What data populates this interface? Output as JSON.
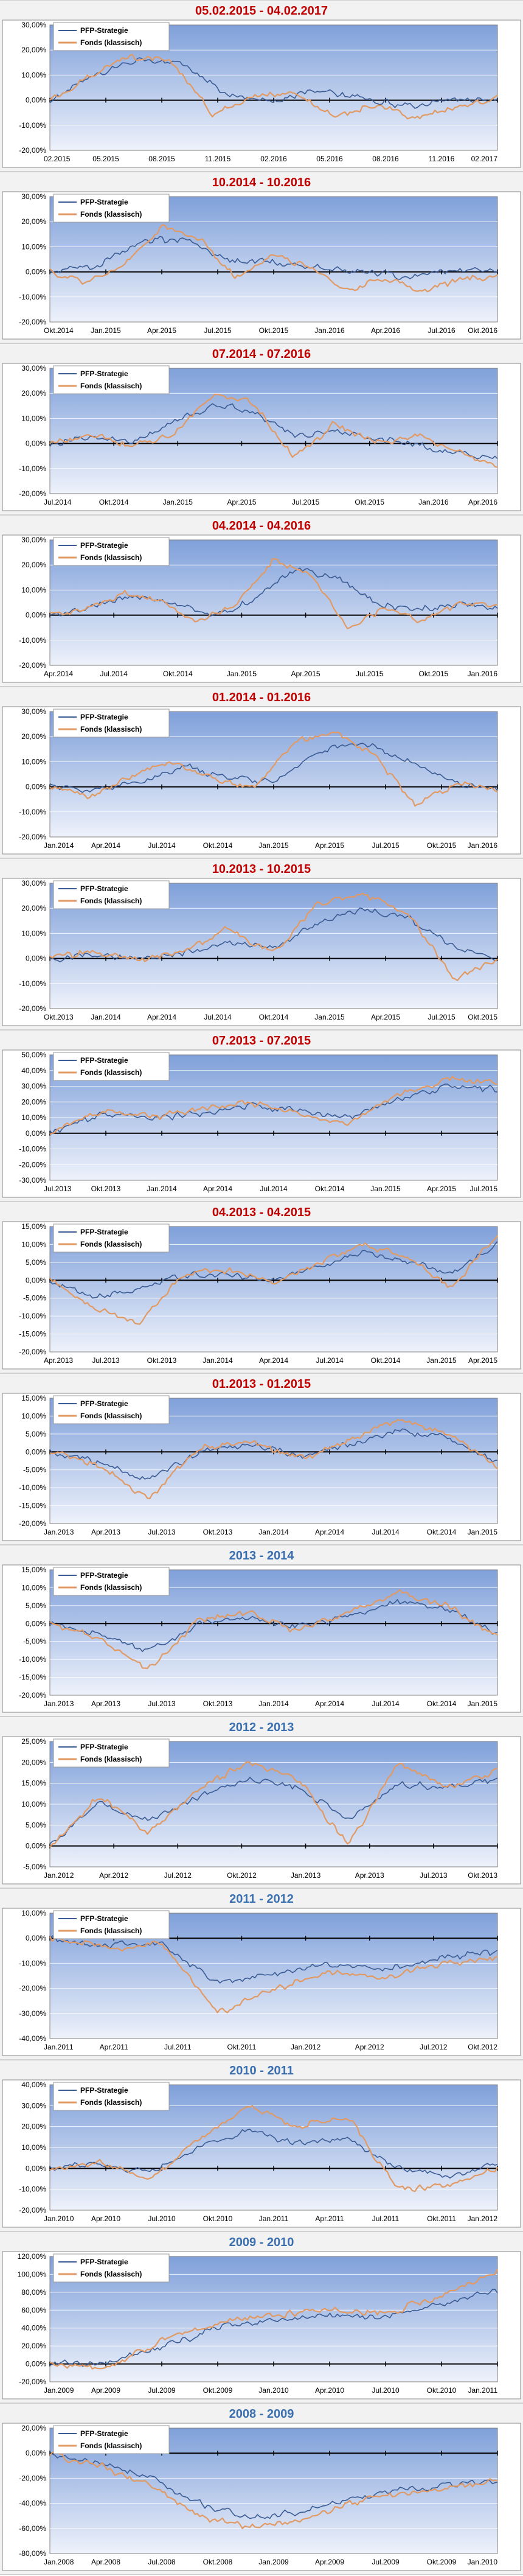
{
  "legend_labels": [
    "PFP-Strategie",
    "Fonds (klassisch)"
  ],
  "colors": {
    "plot_top": "#7fa0da",
    "plot_bottom": "#eef2fb",
    "grid": "#ffffff",
    "red_title": "#c00000",
    "blue_title": "#3a6fb0",
    "series_pfp": "#3a5b93",
    "series_fonds": "#e19a63",
    "zero_line": "#000000"
  },
  "chart_data": [
    {
      "type": "line",
      "title": "05.02.2015 - 04.02.2017",
      "title_color": "red",
      "xlabels": [
        "02.2015",
        "05.2015",
        "08.2015",
        "11.2015",
        "02.2016",
        "05.2016",
        "08.2016",
        "11.2016",
        "02.2017"
      ],
      "ytick_labels": [
        "-20,00%",
        "-10,00%",
        "0,00%",
        "10,00%",
        "20,00%",
        "30,00%"
      ],
      "ylim": [
        -20,
        30
      ],
      "series": [
        {
          "name": "PFP-Strategie",
          "values": [
            0,
            10,
            17,
            14,
            2,
            0,
            4,
            1,
            -3,
            0,
            0
          ]
        },
        {
          "name": "Fonds (klassisch)",
          "values": [
            0,
            10,
            18,
            15,
            -6,
            2,
            3,
            -6,
            -2,
            -7,
            -3,
            1
          ]
        }
      ]
    },
    {
      "type": "line",
      "title": "10.2014 - 10.2016",
      "title_color": "red",
      "xlabels": [
        "Okt.2014",
        "Jan.2015",
        "Apr.2015",
        "Jul.2015",
        "Okt.2015",
        "Jan.2016",
        "Apr.2016",
        "Jul.2016",
        "Okt.2016"
      ],
      "ytick_labels": [
        "-20,00%",
        "-10,00%",
        "0,00%",
        "10,00%",
        "20,00%",
        "30,00%"
      ],
      "ylim": [
        -20,
        30
      ],
      "series": [
        {
          "name": "PFP-Strategie",
          "values": [
            0,
            2,
            12,
            13,
            4,
            4,
            2,
            0,
            -2,
            1,
            0
          ]
        },
        {
          "name": "Fonds (klassisch)",
          "values": [
            0,
            -4,
            3,
            18,
            14,
            -3,
            7,
            2,
            -8,
            -2,
            -8,
            -3,
            -2
          ]
        }
      ]
    },
    {
      "type": "line",
      "title": "07.2014 - 07.2016",
      "title_color": "red",
      "xlabels": [
        "Jul.2014",
        "Okt.2014",
        "Jan.2015",
        "Apr.2015",
        "Jul.2015",
        "Okt.2015",
        "Jan.2016",
        "Apr.2016"
      ],
      "ytick_labels": [
        "-20,00%",
        "-10,00%",
        "0,00%",
        "10,00%",
        "20,00%",
        "30,00%"
      ],
      "ylim": [
        -20,
        30
      ],
      "series": [
        {
          "name": "PFP-Strategie",
          "values": [
            0,
            3,
            0,
            8,
            15,
            13,
            3,
            5,
            2,
            0,
            -4,
            -6
          ]
        },
        {
          "name": "Fonds (klassisch)",
          "values": [
            0,
            4,
            -1,
            3,
            20,
            16,
            -6,
            8,
            0,
            3,
            -3,
            -10
          ]
        }
      ]
    },
    {
      "type": "line",
      "title": "04.2014 - 04.2016",
      "title_color": "red",
      "xlabels": [
        "Apr.2014",
        "Jul.2014",
        "Okt.2014",
        "Jan.2015",
        "Apr.2015",
        "Jul.2015",
        "Okt.2015",
        "Jan.2016"
      ],
      "ytick_labels": [
        "-20,00%",
        "-10,00%",
        "0,00%",
        "10,00%",
        "20,00%",
        "30,00%"
      ],
      "ylim": [
        -20,
        30
      ],
      "series": [
        {
          "name": "PFP-Strategie",
          "values": [
            0,
            3,
            8,
            5,
            0,
            6,
            18,
            16,
            5,
            2,
            4,
            3
          ]
        },
        {
          "name": "Fonds (klassisch)",
          "values": [
            0,
            2,
            9,
            6,
            -3,
            5,
            22,
            17,
            -6,
            3,
            -2,
            5,
            4
          ]
        }
      ]
    },
    {
      "type": "line",
      "title": "01.2014 - 01.2016",
      "title_color": "red",
      "xlabels": [
        "Jan.2014",
        "Apr.2014",
        "Jul.2014",
        "Okt.2014",
        "Jan.2015",
        "Apr.2015",
        "Jul.2015",
        "Okt.2015",
        "Jan.2016"
      ],
      "ytick_labels": [
        "-20,00%",
        "-10,00%",
        "0,00%",
        "10,00%",
        "20,00%",
        "30,00%"
      ],
      "ylim": [
        -20,
        30
      ],
      "series": [
        {
          "name": "PFP-Strategie",
          "values": [
            0,
            -1,
            2,
            8,
            4,
            2,
            14,
            18,
            10,
            2,
            -1
          ]
        },
        {
          "name": "Fonds (klassisch)",
          "values": [
            0,
            -4,
            4,
            10,
            3,
            -1,
            18,
            22,
            12,
            -8,
            2,
            -2
          ]
        }
      ]
    },
    {
      "type": "line",
      "title": "10.2013 - 10.2015",
      "title_color": "red",
      "xlabels": [
        "Okt.2013",
        "Jan.2014",
        "Apr.2014",
        "Jul.2014",
        "Okt.2014",
        "Jan.2015",
        "Apr.2015",
        "Jul.2015",
        "Okt.2015"
      ],
      "ytick_labels": [
        "-20,00%",
        "-10,00%",
        "0,00%",
        "10,00%",
        "20,00%",
        "30,00%"
      ],
      "ylim": [
        -20,
        30
      ],
      "series": [
        {
          "name": "PFP-Strategie",
          "values": [
            0,
            1,
            0,
            2,
            6,
            4,
            14,
            20,
            16,
            5,
            0
          ]
        },
        {
          "name": "Fonds (klassisch)",
          "values": [
            0,
            3,
            -1,
            3,
            12,
            2,
            22,
            26,
            18,
            -8,
            0
          ]
        }
      ]
    },
    {
      "type": "line",
      "title": "07.2013 - 07.2015",
      "title_color": "red",
      "xlabels": [
        "Jul.2013",
        "Okt.2013",
        "Jan.2014",
        "Apr.2014",
        "Jul.2014",
        "Okt.2014",
        "Jan.2015",
        "Apr.2015",
        "Jul.2015"
      ],
      "ytick_labels": [
        "-30,00%",
        "-20,00%",
        "-10,00%",
        "0,00%",
        "10,00%",
        "20,00%",
        "30,00%",
        "40,00%",
        "50,00%"
      ],
      "ylim": [
        -30,
        50
      ],
      "series": [
        {
          "name": "PFP-Strategie",
          "values": [
            0,
            12,
            10,
            12,
            18,
            14,
            10,
            22,
            30,
            28
          ]
        },
        {
          "name": "Fonds (klassisch)",
          "values": [
            0,
            14,
            10,
            15,
            20,
            12,
            6,
            25,
            35,
            32
          ]
        }
      ]
    },
    {
      "type": "line",
      "title": "04.2013 - 04.2015",
      "title_color": "red",
      "xlabels": [
        "Apr.2013",
        "Jul.2013",
        "Okt.2013",
        "Jan.2014",
        "Apr.2014",
        "Jul.2014",
        "Okt.2014",
        "Jan.2015",
        "Apr.2015"
      ],
      "ytick_labels": [
        "-20,00%",
        "-15,00%",
        "-10,00%",
        "-5,00%",
        "0,00%",
        "5,00%",
        "10,00%",
        "15,00%"
      ],
      "ylim": [
        -20,
        15
      ],
      "series": [
        {
          "name": "PFP-Strategie",
          "values": [
            0,
            -5,
            -2,
            1,
            2,
            0,
            4,
            8,
            5,
            2,
            10
          ]
        },
        {
          "name": "Fonds (klassisch)",
          "values": [
            0,
            -8,
            -12,
            2,
            3,
            -1,
            5,
            10,
            6,
            -2,
            13
          ]
        }
      ]
    },
    {
      "type": "line",
      "title": "01.2013 - 01.2015",
      "title_color": "red",
      "xlabels": [
        "Jan.2013",
        "Apr.2013",
        "Jul.2013",
        "Okt.2013",
        "Jan.2014",
        "Apr.2014",
        "Jul.2014",
        "Okt.2014",
        "Jan.2015"
      ],
      "ytick_labels": [
        "-20,00%",
        "-15,00%",
        "-10,00%",
        "-5,00%",
        "0,00%",
        "5,00%",
        "10,00%",
        "15,00%"
      ],
      "ylim": [
        -20,
        15
      ],
      "series": [
        {
          "name": "PFP-Strategie",
          "values": [
            0,
            -3,
            -8,
            0,
            2,
            -1,
            2,
            6,
            4,
            -3
          ]
        },
        {
          "name": "Fonds (klassisch)",
          "values": [
            0,
            -4,
            -13,
            1,
            3,
            -2,
            3,
            9,
            5,
            -4
          ]
        }
      ]
    },
    {
      "type": "line",
      "title": "2013 - 2014",
      "title_color": "blue",
      "xlabels": [
        "Jan.2013",
        "Apr.2013",
        "Jul.2013",
        "Okt.2013",
        "Jan.2014",
        "Apr.2014",
        "Jul.2014",
        "Okt.2014",
        "Jan.2015"
      ],
      "ytick_labels": [
        "-20,00%",
        "-15,00%",
        "-10,00%",
        "-5,00%",
        "0,00%",
        "5,00%",
        "10,00%",
        "15,00%"
      ],
      "ylim": [
        -20,
        15
      ],
      "series": [
        {
          "name": "PFP-Strategie",
          "values": [
            0,
            -3,
            -8,
            0,
            2,
            -1,
            2,
            6,
            4,
            -3
          ]
        },
        {
          "name": "Fonds (klassisch)",
          "values": [
            0,
            -4,
            -13,
            1,
            3,
            -2,
            3,
            9,
            5,
            -4
          ]
        }
      ]
    },
    {
      "type": "line",
      "title": "2012 - 2013",
      "title_color": "blue",
      "xlabels": [
        "Jan.2012",
        "Apr.2012",
        "Jul.2012",
        "Okt.2012",
        "Jan.2013",
        "Apr.2013",
        "Jul.2013",
        "Okt.2013"
      ],
      "ytick_labels": [
        "-5,00%",
        "0,00%",
        "5,00%",
        "10,00%",
        "15,00%",
        "20,00%",
        "25,00%"
      ],
      "ylim": [
        -5,
        25
      ],
      "series": [
        {
          "name": "PFP-Strategie",
          "values": [
            0,
            10,
            6,
            12,
            16,
            14,
            6,
            15,
            14,
            16
          ]
        },
        {
          "name": "Fonds (klassisch)",
          "values": [
            0,
            12,
            3,
            14,
            20,
            16,
            0,
            20,
            14,
            18
          ]
        }
      ]
    },
    {
      "type": "line",
      "title": "2011 - 2012",
      "title_color": "blue",
      "xlabels": [
        "Jan.2011",
        "Apr.2011",
        "Jul.2011",
        "Okt.2011",
        "Jan.2012",
        "Apr.2012",
        "Jul.2012",
        "Okt.2012"
      ],
      "ytick_labels": [
        "-40,00%",
        "-30,00%",
        "-20,00%",
        "-10,00%",
        "0,00%",
        "10,00%"
      ],
      "ylim": [
        -40,
        10
      ],
      "series": [
        {
          "name": "PFP-Strategie",
          "values": [
            0,
            -3,
            -2,
            -18,
            -14,
            -10,
            -12,
            -8,
            -5
          ]
        },
        {
          "name": "Fonds (klassisch)",
          "values": [
            0,
            -4,
            -2,
            -30,
            -20,
            -14,
            -16,
            -10,
            -8
          ]
        }
      ]
    },
    {
      "type": "line",
      "title": "2010 - 2011",
      "title_color": "blue",
      "xlabels": [
        "Jan.2010",
        "Apr.2010",
        "Jul.2010",
        "Okt.2010",
        "Jan.2011",
        "Apr.2011",
        "Jul.2011",
        "Okt.2011",
        "Jan.2012"
      ],
      "ytick_labels": [
        "-20,00%",
        "-10,00%",
        "0,00%",
        "10,00%",
        "20,00%",
        "30,00%",
        "40,00%"
      ],
      "ylim": [
        -20,
        40
      ],
      "series": [
        {
          "name": "PFP-Strategie",
          "values": [
            0,
            2,
            -2,
            10,
            18,
            12,
            14,
            0,
            -4,
            2
          ]
        },
        {
          "name": "Fonds (klassisch)",
          "values": [
            0,
            3,
            -5,
            14,
            30,
            20,
            24,
            -10,
            -8,
            0
          ]
        }
      ]
    },
    {
      "type": "line",
      "title": "2009 - 2010",
      "title_color": "blue",
      "xlabels": [
        "Jan.2009",
        "Apr.2009",
        "Jul.2009",
        "Okt.2009",
        "Jan.2010",
        "Apr.2010",
        "Jul.2010",
        "Okt.2010",
        "Jan.2011"
      ],
      "ytick_labels": [
        "-20,00%",
        "0,00%",
        "20,00%",
        "40,00%",
        "60,00%",
        "80,00%",
        "100,00%",
        "120,00%"
      ],
      "ylim": [
        -20,
        120
      ],
      "series": [
        {
          "name": "PFP-Strategie",
          "values": [
            0,
            2,
            20,
            40,
            48,
            55,
            52,
            68,
            80
          ]
        },
        {
          "name": "Fonds (klassisch)",
          "values": [
            0,
            -5,
            25,
            45,
            55,
            60,
            56,
            75,
            105
          ]
        }
      ]
    },
    {
      "type": "line",
      "title": "2008 - 2009",
      "title_color": "blue",
      "xlabels": [
        "Jan.2008",
        "Apr.2008",
        "Jul.2008",
        "Okt.2008",
        "Jan.2009",
        "Apr.2009",
        "Jul.2009",
        "Okt.2009",
        "Jan.2010"
      ],
      "ytick_labels": [
        "-80,00%",
        "-60,00%",
        "-40,00%",
        "-20,00%",
        "0,00%",
        "20,00%"
      ],
      "ylim": [
        -80,
        20
      ],
      "series": [
        {
          "name": "PFP-Strategie",
          "values": [
            0,
            -8,
            -20,
            -40,
            -52,
            -48,
            -36,
            -30,
            -26,
            -22
          ]
        },
        {
          "name": "Fonds (klassisch)",
          "values": [
            0,
            -10,
            -25,
            -50,
            -58,
            -55,
            -40,
            -32,
            -28,
            -22
          ]
        }
      ]
    }
  ]
}
